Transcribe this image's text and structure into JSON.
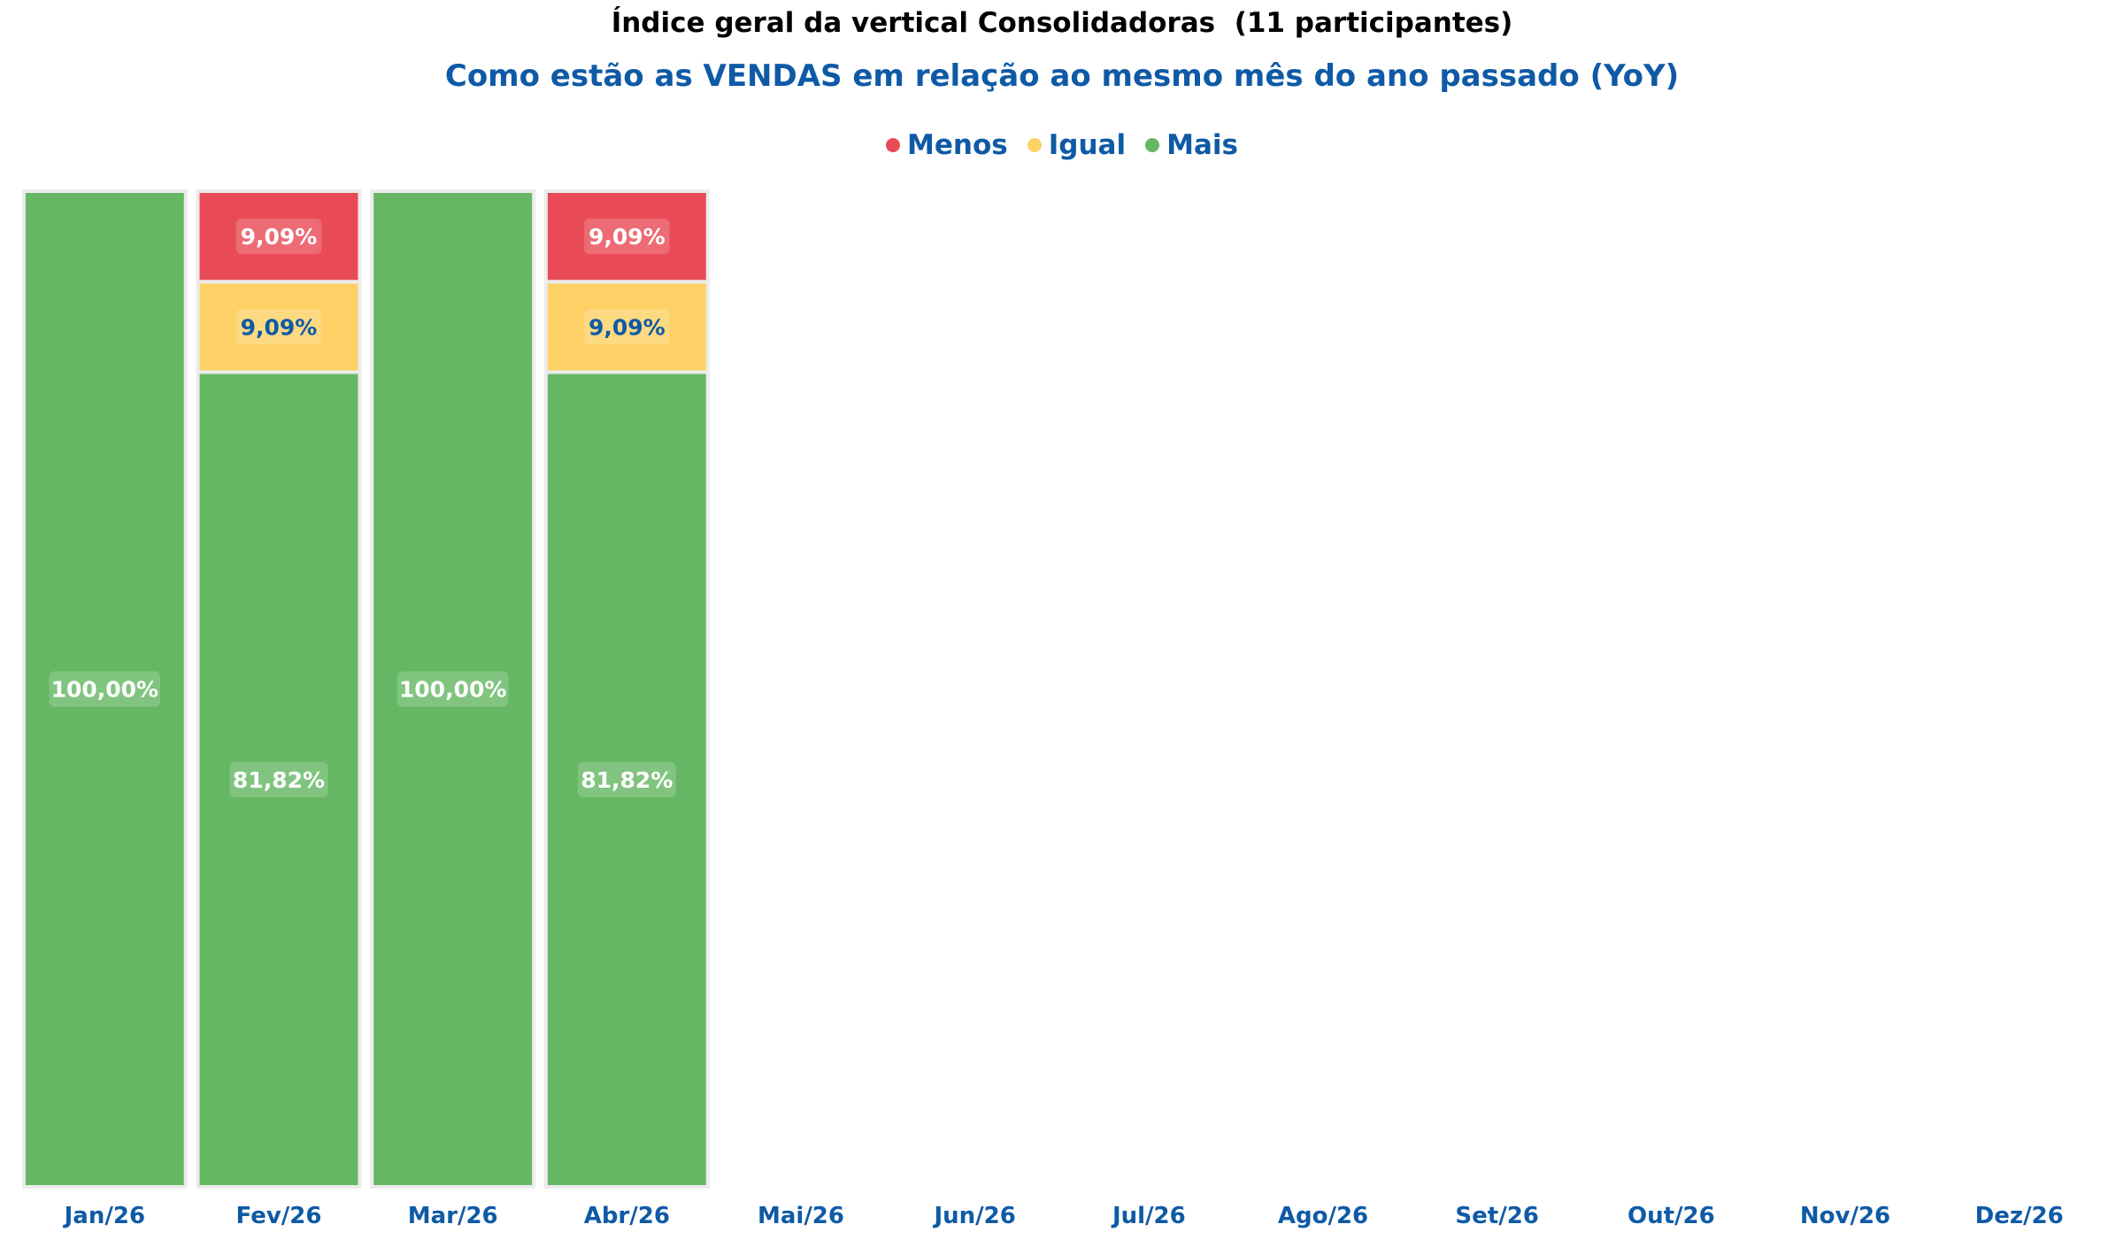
{
  "chart_data": {
    "type": "bar",
    "stacked": true,
    "normalized": true,
    "title": "Índice geral da vertical Consolidadoras  (11 participantes)",
    "subtitle": "Como estão as VENDAS em relação ao mesmo mês do ano passado (YoY)",
    "legend_position": "top-center",
    "grid": false,
    "ylim": [
      0,
      100
    ],
    "categories": [
      "Jan/26",
      "Fev/26",
      "Mar/26",
      "Abr/26",
      "Mai/26",
      "Jun/26",
      "Jul/26",
      "Ago/26",
      "Set/26",
      "Out/26",
      "Nov/26",
      "Dez/26"
    ],
    "series": [
      {
        "name": "Menos",
        "color": "#e94b56",
        "label_color": "#ffffff",
        "values": [
          0,
          9.09,
          0,
          9.09,
          null,
          null,
          null,
          null,
          null,
          null,
          null,
          null
        ],
        "labels": [
          "",
          "9,09%",
          "",
          "9,09%",
          "",
          "",
          "",
          "",
          "",
          "",
          "",
          ""
        ]
      },
      {
        "name": "Igual",
        "color": "#fdd166",
        "label_color": "#0f5aa6",
        "values": [
          0,
          9.09,
          0,
          9.09,
          null,
          null,
          null,
          null,
          null,
          null,
          null,
          null
        ],
        "labels": [
          "",
          "9,09%",
          "",
          "9,09%",
          "",
          "",
          "",
          "",
          "",
          "",
          "",
          ""
        ]
      },
      {
        "name": "Mais",
        "color": "#66b763",
        "label_color": "#ffffff",
        "values": [
          100,
          81.82,
          100,
          81.82,
          null,
          null,
          null,
          null,
          null,
          null,
          null,
          null
        ],
        "labels": [
          "100,00%",
          "81,82%",
          "100,00%",
          "81,82%",
          "",
          "",
          "",
          "",
          "",
          "",
          "",
          ""
        ]
      }
    ]
  },
  "colors": {
    "title": "#000000",
    "subtitle": "#0f5aa6",
    "axis_labels": "#0f5aa6",
    "bar_border": "#ececec"
  }
}
